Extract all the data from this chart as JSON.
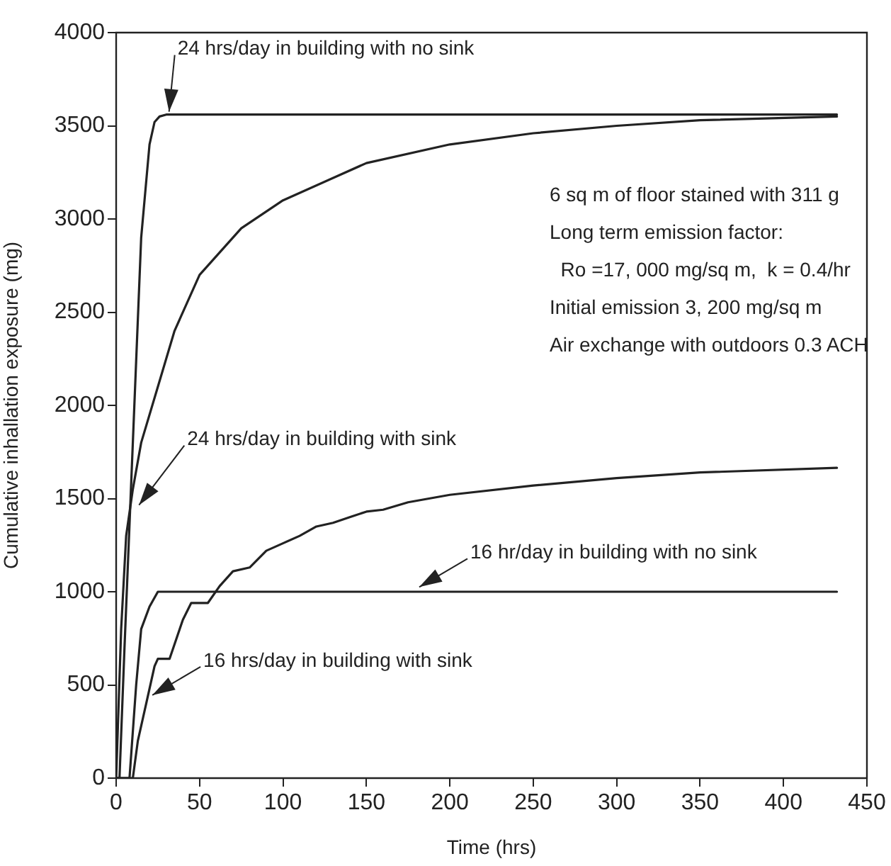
{
  "chart_data": {
    "type": "line",
    "xlabel": "Time (hrs)",
    "ylabel": "Cumulative inhallation exposure (mg)",
    "xlim": [
      0,
      450
    ],
    "xticks": [
      0,
      50,
      100,
      150,
      200,
      250,
      300,
      350,
      400,
      450
    ],
    "ylim": [
      0,
      4000
    ],
    "yticks": [
      0,
      500,
      1000,
      1500,
      2000,
      2500,
      3000,
      3500,
      4000
    ],
    "grid": false,
    "legend": false,
    "marker": "none",
    "line_style": "solid",
    "series": [
      {
        "color": "#222222",
        "x": [
          0,
          2,
          5,
          10,
          15,
          20,
          23,
          26,
          30,
          432
        ],
        "values": [
          0,
          0,
          700,
          1800,
          2900,
          3400,
          3520,
          3550,
          3560,
          3560
        ]
      },
      {
        "color": "#222222",
        "x": [
          0,
          3,
          6,
          10,
          15,
          25,
          35,
          50,
          75,
          100,
          150,
          200,
          250,
          300,
          350,
          432
        ],
        "values": [
          0,
          800,
          1300,
          1550,
          1800,
          2100,
          2400,
          2700,
          2950,
          3100,
          3300,
          3400,
          3460,
          3500,
          3530,
          3550
        ]
      },
      {
        "color": "#222222",
        "x": [
          0,
          8,
          12,
          15,
          20,
          25,
          30,
          432
        ],
        "values": [
          0,
          0,
          500,
          800,
          920,
          1000,
          1000,
          1000
        ]
      },
      {
        "color": "#222222",
        "x": [
          0,
          10,
          13,
          18,
          23,
          25,
          32,
          40,
          45,
          55,
          62,
          70,
          80,
          90,
          100,
          110,
          120,
          130,
          140,
          150,
          160,
          175,
          200,
          250,
          300,
          350,
          432
        ],
        "values": [
          0,
          0,
          200,
          400,
          600,
          640,
          640,
          850,
          940,
          940,
          1030,
          1110,
          1130,
          1220,
          1260,
          1300,
          1350,
          1370,
          1400,
          1430,
          1440,
          1480,
          1520,
          1570,
          1610,
          1640,
          1665
        ]
      }
    ],
    "annotations": [
      {
        "text": "24 hrs/day in building with no sink",
        "x": 30,
        "y": 3560
      },
      {
        "text": "24 hrs/day in building with sink",
        "x": 12,
        "y": 1450
      },
      {
        "text": "16 hr/day in building with no sink",
        "x": 180,
        "y": 1010
      },
      {
        "text": "16 hrs/day in building with sink",
        "x": 20,
        "y": 430
      },
      "6 sq m of floor stained with 311 g",
      "Long term emission factor:",
      "  Ro =17, 000 mg/sq m,  k = 0.4/hr",
      "Initial emission 3, 200 mg/sq m",
      "Air exchange with outdoors 0.3 ACH"
    ]
  }
}
